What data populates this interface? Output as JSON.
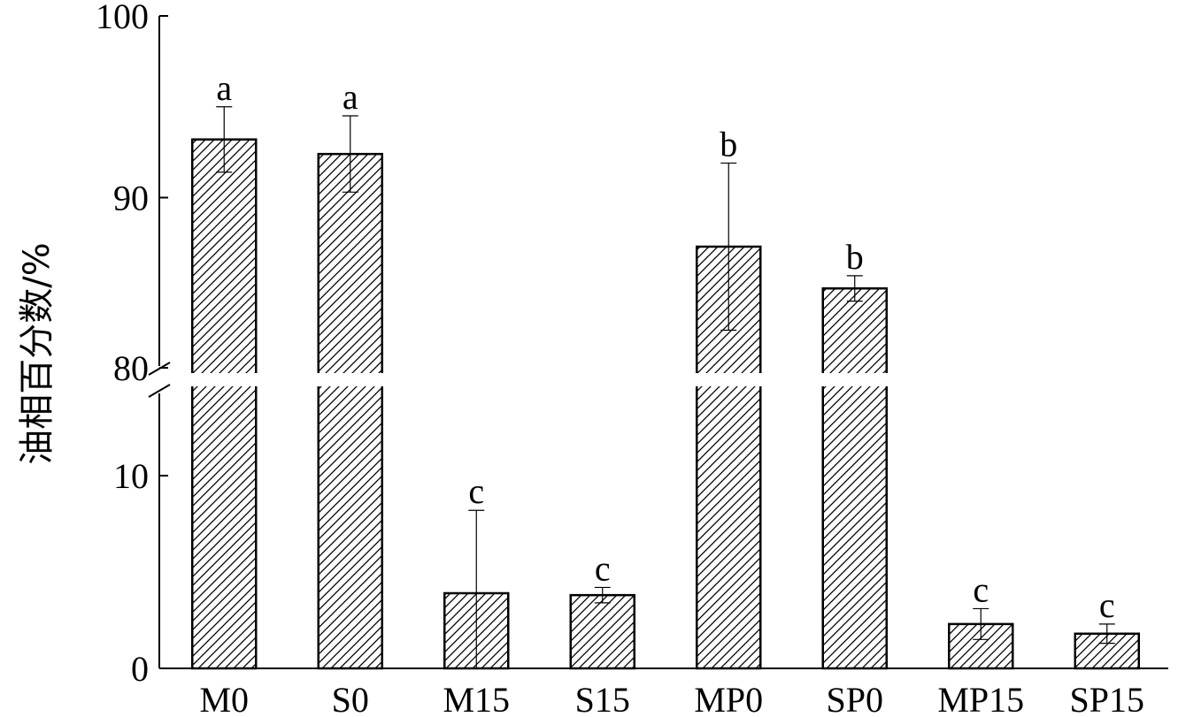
{
  "chart_data": {
    "type": "bar",
    "title": "",
    "xlabel": "",
    "ylabel": "油相百分数/%",
    "broken_axis": true,
    "ylim_lower": [
      0,
      15
    ],
    "ylim_upper": [
      80,
      100
    ],
    "yticks": [
      "0",
      "10",
      "80",
      "90",
      "100"
    ],
    "categories": [
      "M0",
      "S0",
      "M15",
      "S15",
      "MP0",
      "SP0",
      "MP15",
      "SP15"
    ],
    "values": [
      93.2,
      92.4,
      3.9,
      3.8,
      87.3,
      85.0,
      2.3,
      1.8
    ],
    "error": [
      1.8,
      2.1,
      4.3,
      0.4,
      4.6,
      0.7,
      0.8,
      0.5
    ],
    "significance": [
      "a",
      "a",
      "c",
      "c",
      "b",
      "b",
      "c",
      "c"
    ],
    "bar_fill": "hatched",
    "colors": {
      "bar_edge": "#000000",
      "hatch": "#000000",
      "background": "#ffffff"
    },
    "grid": false,
    "legend": "none"
  }
}
